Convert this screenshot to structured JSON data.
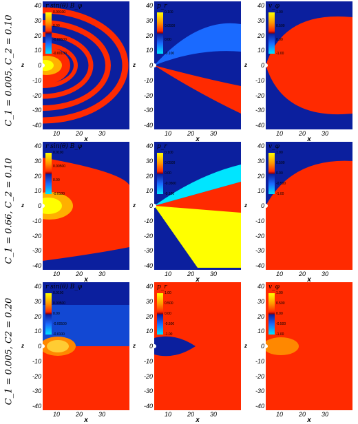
{
  "rows": [
    {
      "label": "C_1 = 0.005, C_2 = 0.10"
    },
    {
      "label": "C_1 = 0.66, C_2 = 0.10"
    },
    {
      "label": "C_1 = 0.005, C2 = 0.20"
    }
  ],
  "panels": [
    [
      {
        "title": "r sin(θ) B_φ",
        "ticks": [
          "0.00100",
          "0.00",
          "-0.00500",
          "-0.00100"
        ],
        "field": "bphi",
        "variant": 1
      },
      {
        "title": "p_r",
        "ticks": [
          "0.100",
          "0.0500",
          "0.00",
          "-0.100"
        ],
        "field": "pr",
        "variant": 1
      },
      {
        "title": "v_φ",
        "ticks": [
          "1.00",
          "0.500",
          "0.00",
          "-1.00"
        ],
        "field": "vphi",
        "variant": 1
      }
    ],
    [
      {
        "title": "r sin(θ) B_φ",
        "ticks": [
          "0.0100",
          "0.00500",
          "0.00",
          "-0.0100"
        ],
        "field": "bphi",
        "variant": 2
      },
      {
        "title": "p_r",
        "ticks": [
          "0.100",
          "0.0500",
          "0.00",
          "-0.0500",
          "-0.100"
        ],
        "field": "pr",
        "variant": 2
      },
      {
        "title": "v_φ",
        "ticks": [
          "1.00",
          "0.500",
          "0.00",
          "-0.500",
          "-1.00"
        ],
        "field": "vphi",
        "variant": 2
      }
    ],
    [
      {
        "title": "r sin(θ) B_φ",
        "ticks": [
          "0.0100",
          "0.00500",
          "0.00",
          "-0.00500",
          "-0.0100"
        ],
        "field": "bphi",
        "variant": 3
      },
      {
        "title": "p_r",
        "ticks": [
          "1.00",
          "0.500",
          "0.00",
          "-0.500",
          "-1.00"
        ],
        "field": "pr",
        "variant": 3
      },
      {
        "title": "v_φ",
        "ticks": [
          "1.00",
          "0.500",
          "0.00",
          "-0.500",
          "-1.00"
        ],
        "field": "vphi",
        "variant": 3
      }
    ]
  ],
  "axes": {
    "x_label": "x",
    "y_label": "z",
    "x_ticks": [
      "10",
      "20",
      "30"
    ],
    "y_ticks": [
      "40",
      "30",
      "20",
      "10",
      "0",
      "-10",
      "-20",
      "-30",
      "-40"
    ]
  },
  "colors": {
    "background": "#0b1f9e",
    "red": "#ff2a00",
    "yellow": "#ffff00",
    "light_blue": "#1a6aff",
    "cyan": "#00e5ff"
  }
}
